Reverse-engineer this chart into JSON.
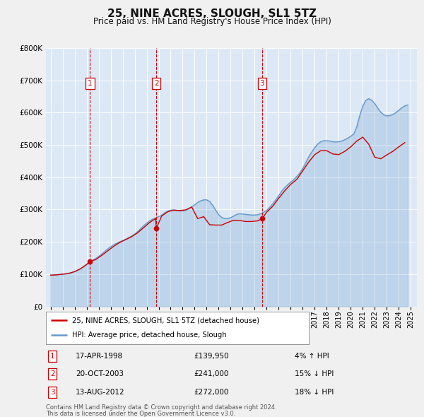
{
  "title": "25, NINE ACRES, SLOUGH, SL1 5TZ",
  "subtitle": "Price paid vs. HM Land Registry's House Price Index (HPI)",
  "plot_bg_color": "#dce8f5",
  "fig_bg_color": "#f0f0f0",
  "ylim": [
    0,
    800000
  ],
  "yticks": [
    0,
    100000,
    200000,
    300000,
    400000,
    500000,
    600000,
    700000,
    800000
  ],
  "ytick_labels": [
    "£0",
    "£100K",
    "£200K",
    "£300K",
    "£400K",
    "£500K",
    "£600K",
    "£700K",
    "£800K"
  ],
  "xlim_start": 1994.6,
  "xlim_end": 2025.5,
  "xtick_years": [
    1995,
    1996,
    1997,
    1998,
    1999,
    2000,
    2001,
    2002,
    2003,
    2004,
    2005,
    2006,
    2007,
    2008,
    2009,
    2010,
    2011,
    2012,
    2013,
    2014,
    2015,
    2016,
    2017,
    2018,
    2019,
    2020,
    2021,
    2022,
    2023,
    2024,
    2025
  ],
  "sale_color": "#cc0000",
  "hpi_color": "#6699cc",
  "sale_label": "25, NINE ACRES, SLOUGH, SL1 5TZ (detached house)",
  "hpi_label": "HPI: Average price, detached house, Slough",
  "transactions": [
    {
      "num": 1,
      "date_str": "17-APR-1998",
      "date_x": 1998.29,
      "price": 139950,
      "pct": "4%",
      "direction": "↑"
    },
    {
      "num": 2,
      "date_str": "20-OCT-2003",
      "date_x": 2003.8,
      "price": 241000,
      "pct": "15%",
      "direction": "↓"
    },
    {
      "num": 3,
      "date_str": "13-AUG-2012",
      "date_x": 2012.62,
      "price": 272000,
      "pct": "18%",
      "direction": "↓"
    }
  ],
  "footer_line1": "Contains HM Land Registry data © Crown copyright and database right 2024.",
  "footer_line2": "This data is licensed under the Open Government Licence v3.0.",
  "hpi_data_x": [
    1995.0,
    1995.25,
    1995.5,
    1995.75,
    1996.0,
    1996.25,
    1996.5,
    1996.75,
    1997.0,
    1997.25,
    1997.5,
    1997.75,
    1998.0,
    1998.25,
    1998.5,
    1998.75,
    1999.0,
    1999.25,
    1999.5,
    1999.75,
    2000.0,
    2000.25,
    2000.5,
    2000.75,
    2001.0,
    2001.25,
    2001.5,
    2001.75,
    2002.0,
    2002.25,
    2002.5,
    2002.75,
    2003.0,
    2003.25,
    2003.5,
    2003.75,
    2004.0,
    2004.25,
    2004.5,
    2004.75,
    2005.0,
    2005.25,
    2005.5,
    2005.75,
    2006.0,
    2006.25,
    2006.5,
    2006.75,
    2007.0,
    2007.25,
    2007.5,
    2007.75,
    2008.0,
    2008.25,
    2008.5,
    2008.75,
    2009.0,
    2009.25,
    2009.5,
    2009.75,
    2010.0,
    2010.25,
    2010.5,
    2010.75,
    2011.0,
    2011.25,
    2011.5,
    2011.75,
    2012.0,
    2012.25,
    2012.5,
    2012.75,
    2013.0,
    2013.25,
    2013.5,
    2013.75,
    2014.0,
    2014.25,
    2014.5,
    2014.75,
    2015.0,
    2015.25,
    2015.5,
    2015.75,
    2016.0,
    2016.25,
    2016.5,
    2016.75,
    2017.0,
    2017.25,
    2017.5,
    2017.75,
    2018.0,
    2018.25,
    2018.5,
    2018.75,
    2019.0,
    2019.25,
    2019.5,
    2019.75,
    2020.0,
    2020.25,
    2020.5,
    2020.75,
    2021.0,
    2021.25,
    2021.5,
    2021.75,
    2022.0,
    2022.25,
    2022.5,
    2022.75,
    2023.0,
    2023.25,
    2023.5,
    2023.75,
    2024.0,
    2024.25,
    2024.5,
    2024.75
  ],
  "hpi_data_y": [
    97000,
    97500,
    98000,
    99000,
    100000,
    101000,
    103000,
    105000,
    108000,
    112000,
    117000,
    123000,
    130000,
    137000,
    143000,
    148000,
    155000,
    162000,
    170000,
    178000,
    185000,
    191000,
    196000,
    200000,
    204000,
    208000,
    213000,
    218000,
    224000,
    232000,
    241000,
    250000,
    258000,
    265000,
    270000,
    274000,
    278000,
    283000,
    290000,
    295000,
    298000,
    299000,
    298000,
    296000,
    296000,
    298000,
    302000,
    308000,
    315000,
    322000,
    327000,
    330000,
    330000,
    325000,
    313000,
    298000,
    284000,
    276000,
    272000,
    272000,
    275000,
    280000,
    285000,
    287000,
    286000,
    285000,
    284000,
    283000,
    283000,
    284000,
    287000,
    292000,
    298000,
    307000,
    318000,
    330000,
    343000,
    357000,
    368000,
    377000,
    385000,
    393000,
    402000,
    413000,
    427000,
    445000,
    463000,
    478000,
    492000,
    503000,
    510000,
    513000,
    513000,
    512000,
    510000,
    509000,
    510000,
    512000,
    516000,
    521000,
    527000,
    534000,
    556000,
    591000,
    620000,
    638000,
    643000,
    638000,
    628000,
    614000,
    601000,
    593000,
    590000,
    591000,
    594000,
    600000,
    607000,
    615000,
    621000,
    624000
  ],
  "sale_data_x": [
    1995.0,
    1995.5,
    1996.0,
    1996.5,
    1997.0,
    1997.5,
    1998.0,
    1998.29,
    1998.75,
    1999.25,
    1999.75,
    2000.25,
    2000.75,
    2001.25,
    2001.75,
    2002.25,
    2002.75,
    2003.25,
    2003.75,
    2003.8,
    2004.25,
    2004.75,
    2005.25,
    2005.75,
    2006.25,
    2006.75,
    2007.25,
    2007.75,
    2008.25,
    2008.75,
    2009.25,
    2009.75,
    2010.25,
    2010.75,
    2011.25,
    2011.75,
    2012.25,
    2012.62,
    2013.0,
    2013.5,
    2014.0,
    2014.5,
    2015.0,
    2015.5,
    2016.0,
    2016.5,
    2017.0,
    2017.5,
    2018.0,
    2018.5,
    2019.0,
    2019.5,
    2020.0,
    2020.5,
    2021.0,
    2021.5,
    2022.0,
    2022.5,
    2023.0,
    2023.5,
    2024.0,
    2024.5
  ],
  "sale_data_y": [
    97000,
    98000,
    100000,
    102000,
    108000,
    117000,
    130000,
    139950,
    145000,
    158000,
    172000,
    186000,
    198000,
    207000,
    216000,
    228000,
    244000,
    260000,
    272000,
    241000,
    280000,
    293000,
    298000,
    297000,
    299000,
    308000,
    272000,
    278000,
    253000,
    252000,
    252000,
    260000,
    267000,
    266000,
    263000,
    263000,
    265000,
    272000,
    292000,
    310000,
    335000,
    358000,
    378000,
    393000,
    420000,
    447000,
    470000,
    482000,
    482000,
    472000,
    470000,
    480000,
    494000,
    512000,
    524000,
    502000,
    462000,
    457000,
    469000,
    480000,
    494000,
    507000
  ]
}
